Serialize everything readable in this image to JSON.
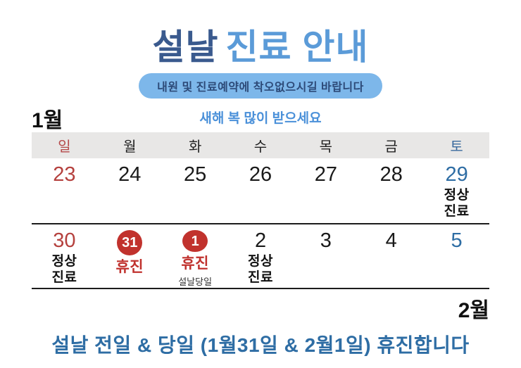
{
  "title": {
    "part1": "설날",
    "part2": "진료 안내"
  },
  "subtitle": "내원 및 진료예약에 착오없으시길 바랍니다",
  "month_january": "1월",
  "greeting": "새해 복 많이 받으세요",
  "weekdays": [
    "일",
    "월",
    "화",
    "수",
    "목",
    "금",
    "토"
  ],
  "calendar": {
    "week1": [
      {
        "day": "23"
      },
      {
        "day": "24"
      },
      {
        "day": "25"
      },
      {
        "day": "26"
      },
      {
        "day": "27"
      },
      {
        "day": "28"
      },
      {
        "day": "29",
        "note1": "정상",
        "note2": "진료"
      }
    ],
    "week2": [
      {
        "day": "30",
        "note1": "정상",
        "note2": "진료"
      },
      {
        "day": "31",
        "note1": "휴진"
      },
      {
        "day": "1",
        "note1": "휴진",
        "subnote": "설날당일"
      },
      {
        "day": "2",
        "note1": "정상",
        "note2": "진료"
      },
      {
        "day": "3"
      },
      {
        "day": "4"
      },
      {
        "day": "5"
      }
    ]
  },
  "month_february": "2월",
  "footer": "설날 전일 & 당일 (1월31일 & 2월1일) 휴진합니다",
  "colors": {
    "title_dark_blue": "#3a5a8e",
    "title_light_blue": "#5b9bd8",
    "pill_bg": "#7db7ea",
    "pill_text": "#2d4a78",
    "greeting_blue": "#4a90d9",
    "sunday_red": "#b5413e",
    "holiday_red": "#c0322e",
    "saturday_blue": "#2e6da4",
    "header_gray": "#e8e7e6",
    "text_black": "#111111"
  }
}
